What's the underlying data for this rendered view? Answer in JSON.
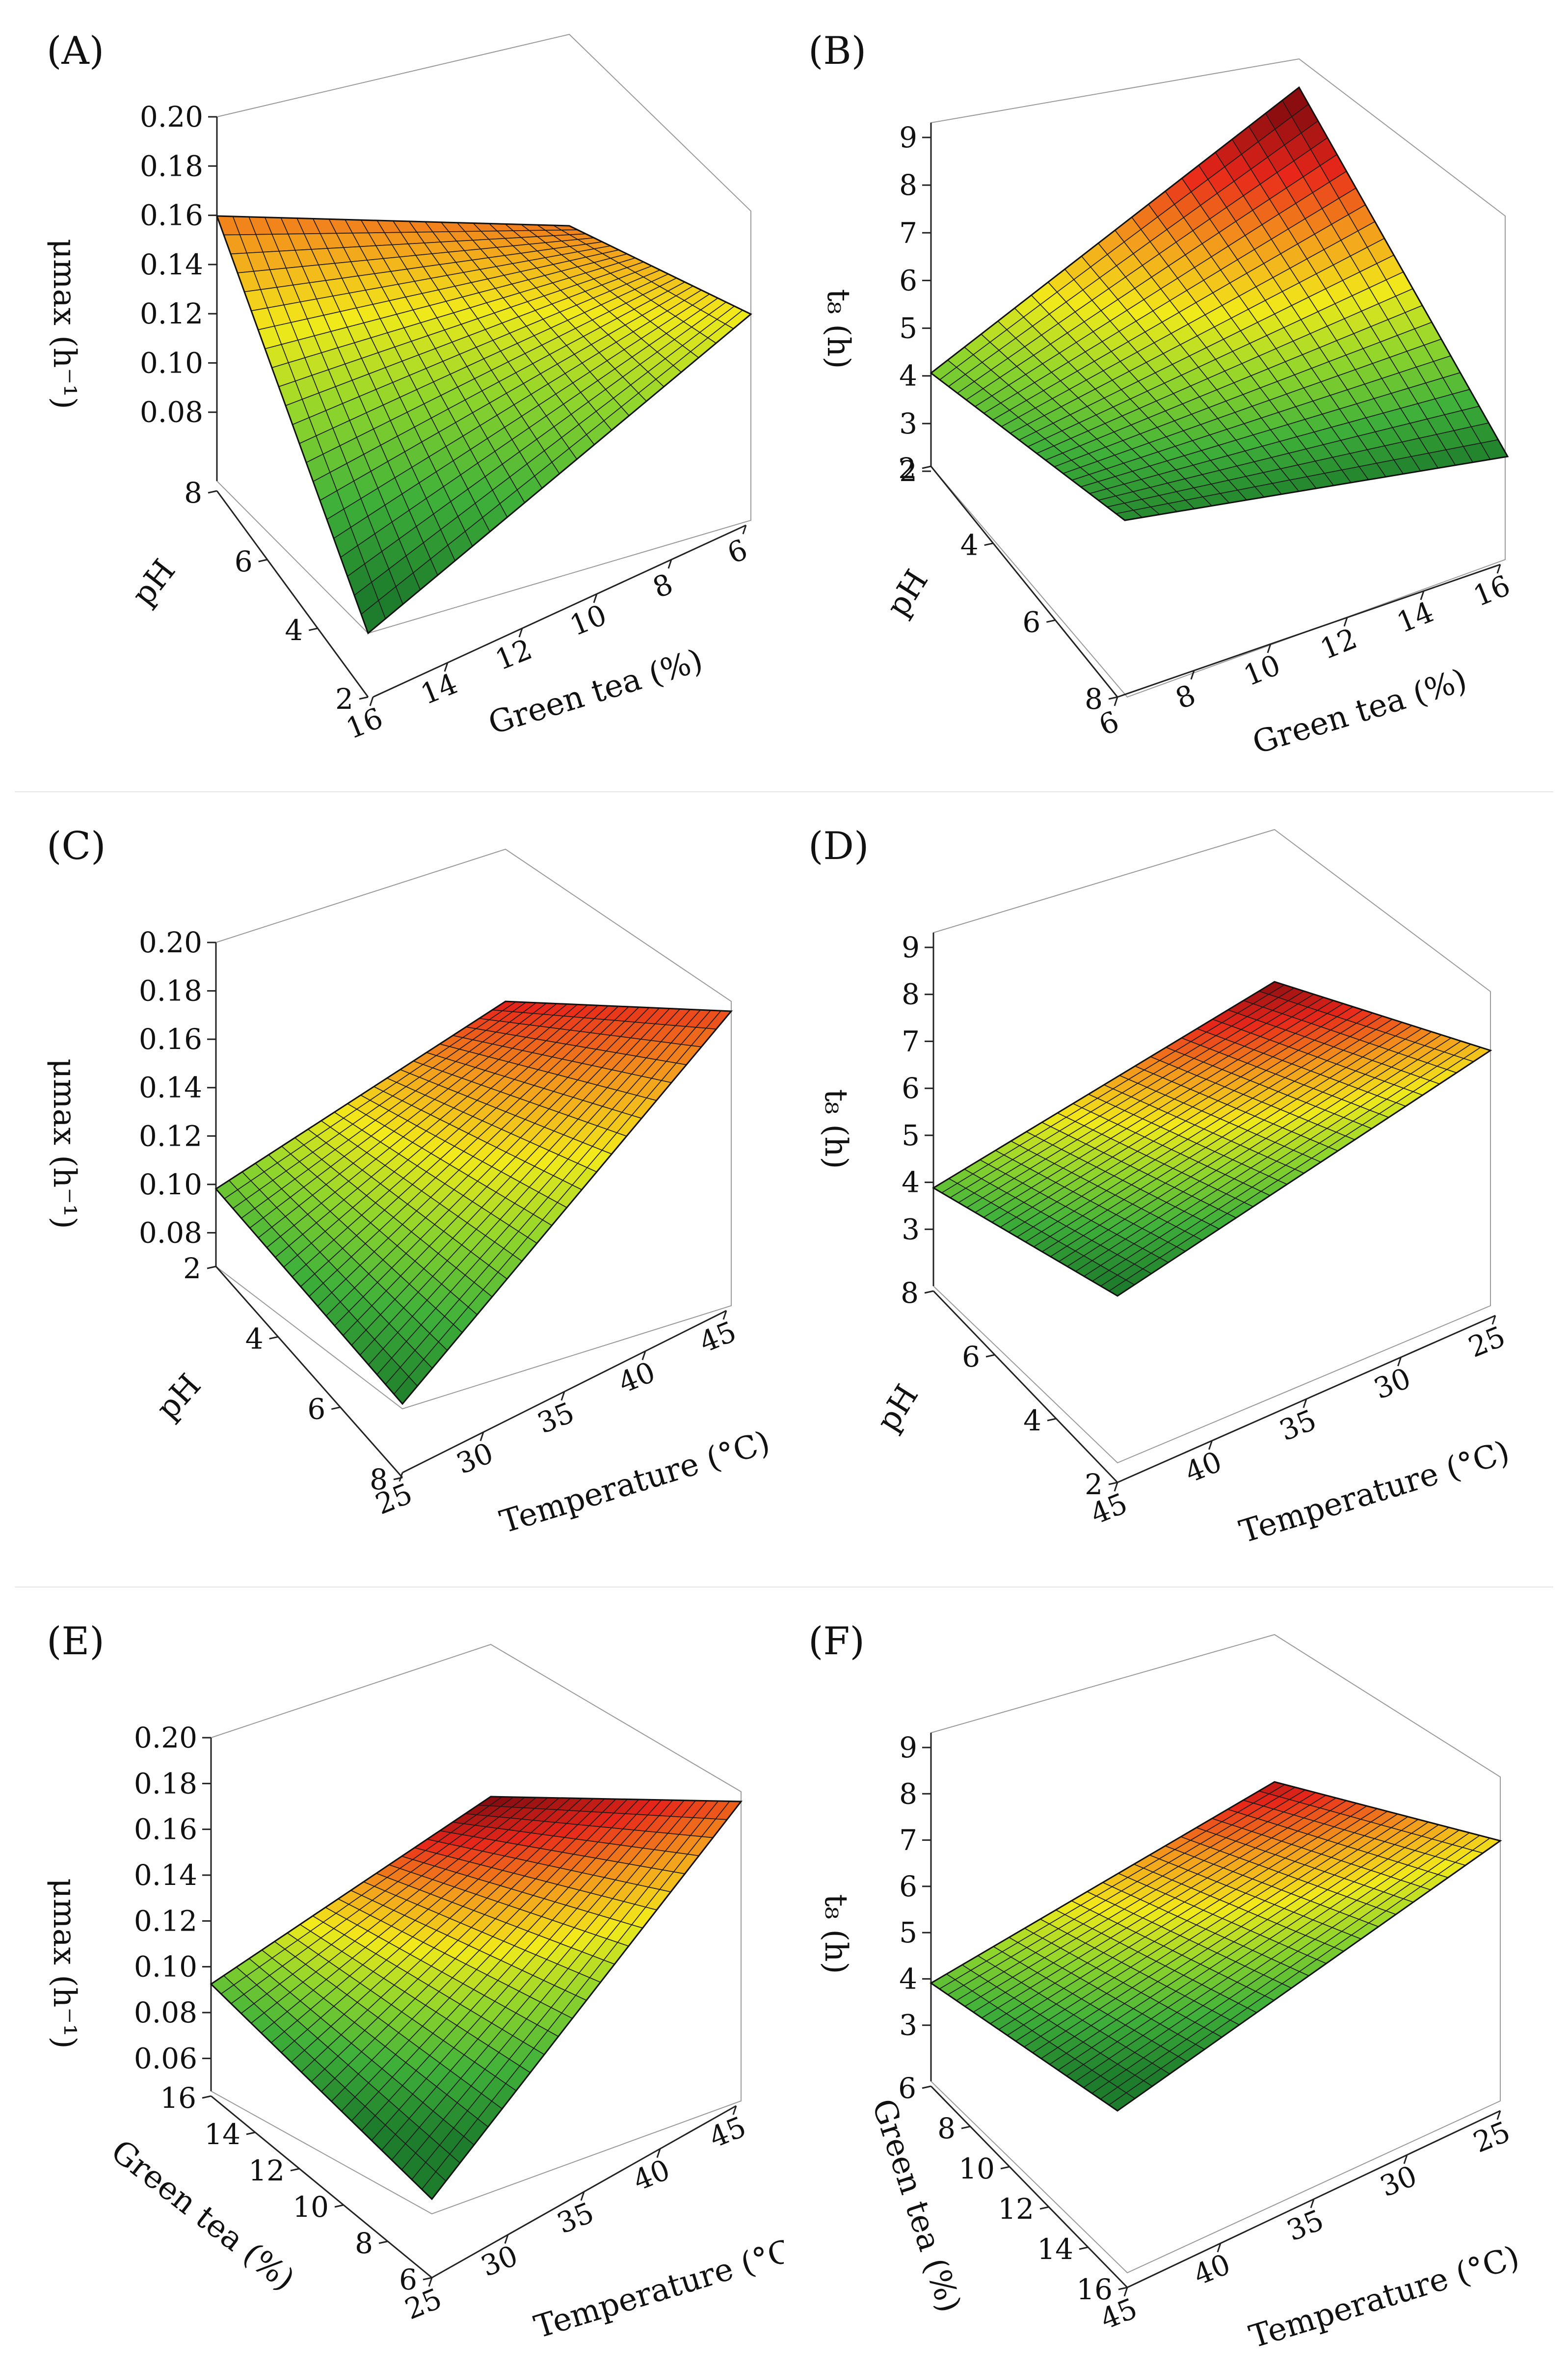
{
  "chart_data": [
    {
      "type": "surface",
      "panel": "(A)",
      "zlabel": "μmax (h⁻¹)",
      "xlabel": "Green tea (%)",
      "ylabel": "pH",
      "zlim": [
        0.06,
        0.2
      ],
      "z_ticks": [
        "0.20",
        "0.18",
        "0.16",
        "0.14",
        "0.12",
        "0.10",
        "0.08"
      ],
      "x_ticks": [
        "16",
        "14",
        "12",
        "10",
        "8",
        "6"
      ],
      "y_ticks": [
        "8",
        "6",
        "4",
        "2"
      ],
      "corners": {
        "left": 0.16,
        "top_back": 0.16,
        "right": 0.13,
        "front": 0.05
      },
      "colorscale": [
        "#1e7d2c",
        "#3fb13a",
        "#8fd52c",
        "#f2ea1a",
        "#f39a1c",
        "#e8261a",
        "#8b0d10"
      ]
    },
    {
      "type": "surface",
      "panel": "(B)",
      "zlabel": "t₈ (h)",
      "xlabel": "Green tea (%)",
      "ylabel": "pH",
      "zlim": [
        2,
        9
      ],
      "z_ticks": [
        "9",
        "8",
        "7",
        "6",
        "5",
        "4",
        "3",
        "2"
      ],
      "x_ticks": [
        "6",
        "8",
        "10",
        "12",
        "14",
        "16"
      ],
      "y_ticks": [
        "2",
        "4",
        "6",
        "8"
      ],
      "corners": {
        "left": 4.0,
        "top_back": 9.5,
        "right": 2.0,
        "front": 2.3
      },
      "colorscale": [
        "#1e7d2c",
        "#3fb13a",
        "#8fd52c",
        "#f2ea1a",
        "#f39a1c",
        "#e8261a",
        "#8b0d10"
      ]
    },
    {
      "type": "surface",
      "panel": "(C)",
      "zlabel": "μmax (h⁻¹)",
      "xlabel": "Temperature (°C)",
      "ylabel": "pH",
      "zlim": [
        0.06,
        0.2
      ],
      "z_ticks": [
        "0.20",
        "0.18",
        "0.16",
        "0.14",
        "0.12",
        "0.10",
        "0.08"
      ],
      "x_ticks": [
        "25",
        "30",
        "35",
        "40",
        "45"
      ],
      "y_ticks": [
        "2",
        "4",
        "6",
        "8"
      ],
      "corners": {
        "left": 0.095,
        "top_back": 0.18,
        "right": 0.17,
        "front": 0.06
      },
      "colorscale": [
        "#1e7d2c",
        "#3fb13a",
        "#8fd52c",
        "#f2ea1a",
        "#f39a1c",
        "#e8261a",
        "#8b0d10"
      ]
    },
    {
      "type": "surface",
      "panel": "(D)",
      "zlabel": "t₈ (h)",
      "xlabel": "Temperature (°C)",
      "ylabel": "pH",
      "zlim": [
        2,
        9
      ],
      "z_ticks": [
        "9",
        "8",
        "7",
        "6",
        "5",
        "4",
        "3"
      ],
      "x_ticks": [
        "45",
        "40",
        "35",
        "30",
        "25"
      ],
      "y_ticks": [
        "8",
        "6",
        "4",
        "2"
      ],
      "corners": {
        "left": 3.6,
        "top_back": 9.0,
        "right": 6.1,
        "front": 1.8
      },
      "colorscale": [
        "#1e7d2c",
        "#3fb13a",
        "#8fd52c",
        "#f2ea1a",
        "#f39a1c",
        "#e8261a",
        "#8b0d10"
      ]
    },
    {
      "type": "surface",
      "panel": "(E)",
      "zlabel": "μmax (h⁻¹)",
      "xlabel": "Temperature (°C)",
      "ylabel": "Green tea (%)",
      "zlim": [
        0.05,
        0.2
      ],
      "z_ticks": [
        "0.20",
        "0.18",
        "0.16",
        "0.14",
        "0.12",
        "0.10",
        "0.08",
        "0.06"
      ],
      "x_ticks": [
        "25",
        "30",
        "35",
        "40",
        "45"
      ],
      "y_ticks": [
        "16",
        "14",
        "12",
        "10",
        "8",
        "6"
      ],
      "corners": {
        "left": 0.085,
        "top_back": 0.205,
        "right": 0.165,
        "front": 0.03
      },
      "colorscale": [
        "#1e7d2c",
        "#3fb13a",
        "#8fd52c",
        "#f2ea1a",
        "#f39a1c",
        "#e8261a",
        "#8b0d10"
      ]
    },
    {
      "type": "surface",
      "panel": "(F)",
      "zlabel": "t₈ (h)",
      "xlabel": "Temperature (°C)",
      "ylabel": "Green tea (%)",
      "zlim": [
        2,
        9
      ],
      "z_ticks": [
        "9",
        "8",
        "7",
        "6",
        "5",
        "4",
        "3"
      ],
      "x_ticks": [
        "45",
        "40",
        "35",
        "30",
        "25"
      ],
      "y_ticks": [
        "6",
        "8",
        "10",
        "12",
        "14",
        "16"
      ],
      "corners": {
        "left": 3.6,
        "top_back": 8.4,
        "right": 5.8,
        "front": 1.4
      },
      "colorscale": [
        "#1e7d2c",
        "#3fb13a",
        "#8fd52c",
        "#f2ea1a",
        "#f39a1c",
        "#e8261a",
        "#8b0d10"
      ]
    }
  ]
}
